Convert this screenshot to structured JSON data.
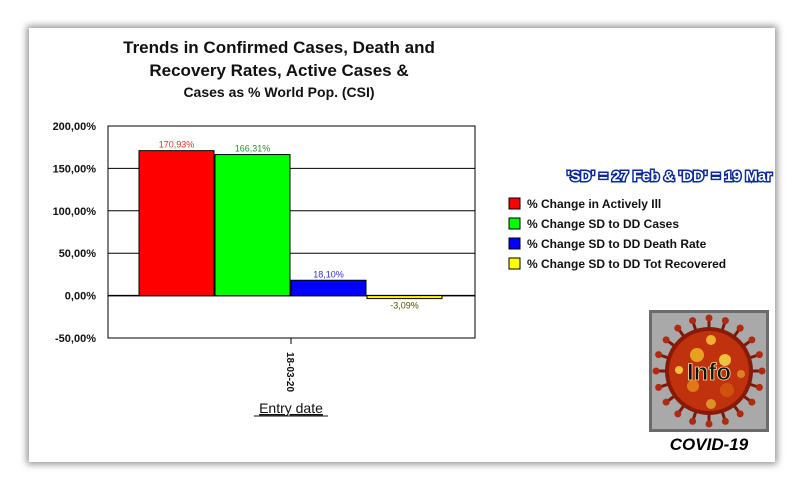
{
  "chart_data": {
    "type": "bar",
    "title_lines": [
      "Trends in Confirmed Cases, Death and",
      "Recovery Rates, Active Cases &",
      "Cases as % World Pop. (CSI)"
    ],
    "subtitle": "'SD' = 27 Feb & 'DD' = 19 Mar",
    "xlabel": "Entry date",
    "ylabel": "",
    "categories": [
      "18-03-20"
    ],
    "ylim": [
      -50,
      200
    ],
    "yticks": [
      -50,
      0,
      50,
      100,
      150,
      200
    ],
    "ytick_labels": [
      "-50,00%",
      "0,00%",
      "50,00%",
      "100,00%",
      "150,00%",
      "200,00%"
    ],
    "grid": true,
    "legend_position": "right",
    "series": [
      {
        "name": "% Change in Actively Ill",
        "values": [
          170.93
        ],
        "label": "170,93%",
        "color": "#ff0000",
        "label_color": "#e03030"
      },
      {
        "name": "% Change SD to DD Cases",
        "values": [
          166.31
        ],
        "label": "166,31%",
        "color": "#00ff00",
        "label_color": "#2e8b2e"
      },
      {
        "name": "% Change SD to DD Death Rate",
        "values": [
          18.1
        ],
        "label": "18,10%",
        "color": "#0000ff",
        "label_color": "#3030c0"
      },
      {
        "name": "% Change SD to DD Tot Recovered",
        "values": [
          -3.09
        ],
        "label": "-3,09%",
        "color": "#ffff00",
        "label_color": "#505000"
      }
    ]
  },
  "badge": {
    "text": "Info",
    "caption": "COVID-19"
  }
}
